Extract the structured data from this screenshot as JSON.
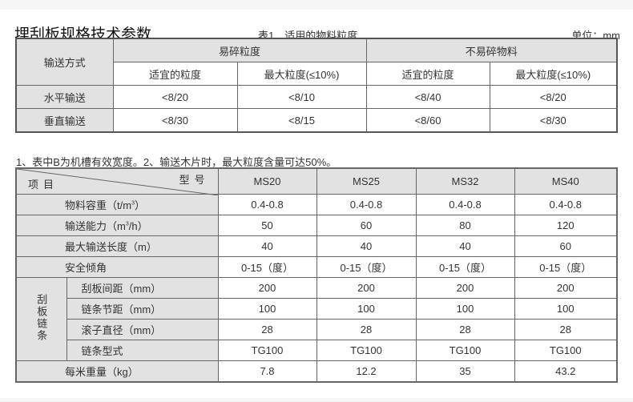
{
  "title": "埋刮板规格技术参数",
  "caption": "表1　适用的物料粒度",
  "unit": "单位：mm",
  "table1": {
    "row_header": "输送方式",
    "groups": [
      "易碎粒度",
      "不易碎物料"
    ],
    "subheaders": [
      "适宜的粒度",
      "最大粒度(≤10%)",
      "适宜的粒度",
      "最大粒度(≤10%)"
    ],
    "rows": [
      {
        "label": "水平输送",
        "values": [
          "<8/20",
          "<8/10",
          "<8/40",
          "<8/20"
        ]
      },
      {
        "label": "垂直输送",
        "values": [
          "<8/30",
          "<8/15",
          "<8/60",
          "<8/30"
        ]
      }
    ]
  },
  "note": "1、表中B为机槽有效宽度。2、输送木片时，最大粒度含量可达50%。",
  "table2": {
    "corner_top": "型号",
    "corner_bottom": "项目",
    "models": [
      "MS20",
      "MS25",
      "MS32",
      "MS40"
    ],
    "rows": [
      {
        "label": "物料容重（t/m",
        "sup": "3",
        "label_end": "）",
        "values": [
          "0.4-0.8",
          "0.4-0.8",
          "0.4-0.8",
          "0.4-0.8"
        ]
      },
      {
        "label": "输送能力（m",
        "sup": "3",
        "label_end": "/h）",
        "values": [
          "50",
          "60",
          "80",
          "120"
        ]
      },
      {
        "label": "最大输送长度（m）",
        "values": [
          "40",
          "40",
          "40",
          "60"
        ]
      },
      {
        "label": "安全倾角",
        "values": [
          "0-15（度）",
          "0-15（度）",
          "0-15（度）",
          "0-15（度）"
        ]
      }
    ],
    "group_label": "刮板链条",
    "group_rows": [
      {
        "label": "刮板间距（mm）",
        "values": [
          "200",
          "200",
          "200",
          "200"
        ]
      },
      {
        "label": "链条节距（mm）",
        "values": [
          "100",
          "100",
          "100",
          "100"
        ]
      },
      {
        "label": "滚子直径（mm）",
        "values": [
          "28",
          "28",
          "28",
          "28"
        ]
      },
      {
        "label": "链条型式",
        "values": [
          "TG100",
          "TG100",
          "TG100",
          "TG100"
        ]
      }
    ],
    "last_row": {
      "label": "每米重量（kg）",
      "values": [
        "7.8",
        "12.2",
        "35",
        "43.2"
      ]
    }
  },
  "colors": {
    "header_bg": "#e2e2e2",
    "border": "#666666"
  }
}
